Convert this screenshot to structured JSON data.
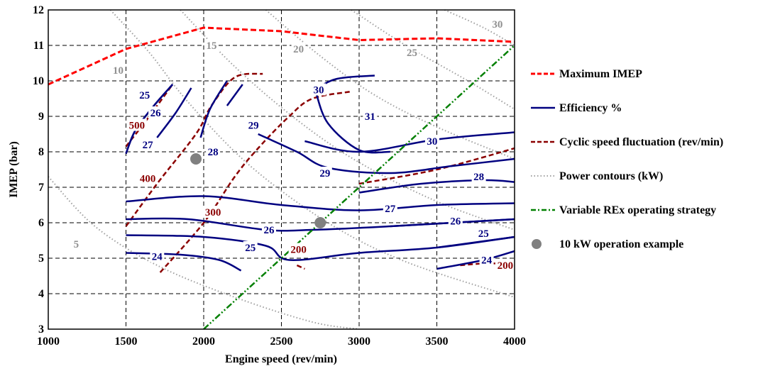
{
  "chart_data": {
    "type": "line",
    "xlabel": "Engine speed (rev/min)",
    "ylabel": "IMEP (bar)",
    "xlim": [
      1000,
      4000
    ],
    "ylim": [
      3,
      12
    ],
    "xticks": [
      1000,
      1500,
      2000,
      2500,
      3000,
      3500,
      4000
    ],
    "yticks": [
      3,
      4,
      5,
      6,
      7,
      8,
      9,
      10,
      11,
      12
    ],
    "grid": true,
    "legend_position": "right",
    "colors": {
      "max_imep": "#ff0000",
      "efficiency": "#000080",
      "cyclic": "#8b0000",
      "power": "#a0a0a0",
      "strategy": "#008000",
      "example": "#808080"
    },
    "legend": [
      {
        "key": "max_imep",
        "label": "Maximum IMEP"
      },
      {
        "key": "efficiency",
        "label": "Efficiency %"
      },
      {
        "key": "cyclic",
        "label": "Cyclic speed fluctuation (rev/min)"
      },
      {
        "key": "power",
        "label": "Power contours (kW)"
      },
      {
        "key": "strategy",
        "label": "Variable REx operating strategy"
      },
      {
        "key": "example",
        "label": "10 kW operation example"
      }
    ],
    "max_imep": [
      [
        1000,
        9.9
      ],
      [
        1500,
        10.9
      ],
      [
        2000,
        11.5
      ],
      [
        2500,
        11.4
      ],
      [
        3000,
        11.15
      ],
      [
        3500,
        11.2
      ],
      [
        4000,
        11.1
      ]
    ],
    "strategy": [
      [
        2000,
        3.0
      ],
      [
        4000,
        11.0
      ]
    ],
    "example_points": [
      [
        1950,
        7.8
      ],
      [
        2750,
        6.0
      ]
    ],
    "power_contours": [
      {
        "label": "5",
        "label_at": [
          1180,
          5.4
        ],
        "points": [
          [
            1000,
            7.3
          ],
          [
            1300,
            5.9
          ],
          [
            1700,
            4.8
          ],
          [
            2200,
            3.9
          ],
          [
            2700,
            3.2
          ],
          [
            3000,
            3.0
          ]
        ]
      },
      {
        "label": "10",
        "label_at": [
          1450,
          10.3
        ],
        "points": [
          [
            1400,
            12.0
          ],
          [
            1650,
            10.8
          ],
          [
            1900,
            9.4
          ],
          [
            2300,
            7.6
          ],
          [
            2800,
            6.0
          ],
          [
            3300,
            4.9
          ],
          [
            4000,
            3.9
          ]
        ]
      },
      {
        "label": "15",
        "label_at": [
          2050,
          11.0
        ],
        "points": [
          [
            1850,
            12.0
          ],
          [
            2200,
            10.4
          ],
          [
            2600,
            8.9
          ],
          [
            3000,
            7.7
          ],
          [
            3500,
            6.6
          ],
          [
            4000,
            5.8
          ]
        ]
      },
      {
        "label": "20",
        "label_at": [
          2610,
          10.9
        ],
        "points": [
          [
            2400,
            12.0
          ],
          [
            2750,
            10.7
          ],
          [
            3100,
            9.6
          ],
          [
            3500,
            8.7
          ],
          [
            4000,
            7.8
          ]
        ]
      },
      {
        "label": "25",
        "label_at": [
          3340,
          10.8
        ],
        "points": [
          [
            2950,
            12.0
          ],
          [
            3300,
            11.0
          ],
          [
            3700,
            10.0
          ],
          [
            4000,
            9.2
          ]
        ]
      },
      {
        "label": "30",
        "label_at": [
          3890,
          11.6
        ],
        "points": [
          [
            3550,
            12.0
          ],
          [
            3800,
            11.5
          ],
          [
            4000,
            11.0
          ]
        ]
      }
    ],
    "efficiency_contours": [
      {
        "label": "24",
        "label_at": [
          1700,
          5.05
        ],
        "points": [
          [
            1500,
            5.15
          ],
          [
            1850,
            5.1
          ],
          [
            2100,
            4.95
          ],
          [
            2240,
            4.65
          ]
        ]
      },
      {
        "label": "24",
        "label_at": [
          3820,
          4.95
        ],
        "points": [
          [
            3500,
            4.7
          ],
          [
            3800,
            4.95
          ],
          [
            4000,
            5.2
          ]
        ]
      },
      {
        "label": "25",
        "label_at": [
          1620,
          9.6
        ],
        "points": [
          [
            1500,
            7.95
          ],
          [
            1560,
            8.6
          ],
          [
            1680,
            9.3
          ],
          [
            1800,
            9.9
          ]
        ]
      },
      {
        "label": "25",
        "label_at": [
          2300,
          5.3
        ],
        "points": [
          [
            1500,
            5.65
          ],
          [
            2000,
            5.6
          ],
          [
            2400,
            5.35
          ],
          [
            2550,
            4.95
          ],
          [
            3000,
            5.15
          ],
          [
            3500,
            5.3
          ],
          [
            4000,
            5.6
          ]
        ]
      },
      {
        "label": "25",
        "label_at": [
          3800,
          5.7
        ],
        "points": [
          [
            3500,
            5.3
          ],
          [
            4000,
            5.6
          ]
        ]
      },
      {
        "label": "26",
        "label_at": [
          1690,
          9.1
        ],
        "points": [
          [
            1500,
            7.95
          ],
          [
            1560,
            8.6
          ],
          [
            1680,
            9.3
          ],
          [
            1800,
            9.9
          ]
        ]
      },
      {
        "label": "26",
        "label_at": [
          2420,
          5.8
        ],
        "points": [
          [
            1500,
            6.1
          ],
          [
            1900,
            6.1
          ],
          [
            2400,
            5.8
          ],
          [
            2700,
            5.8
          ],
          [
            3200,
            5.9
          ],
          [
            3600,
            6.0
          ],
          [
            4000,
            6.1
          ]
        ]
      },
      {
        "label": "26",
        "label_at": [
          3620,
          6.05
        ],
        "points": [
          [
            3200,
            5.9
          ],
          [
            4000,
            6.1
          ]
        ]
      },
      {
        "label": "27",
        "label_at": [
          1640,
          8.2
        ],
        "points": [
          [
            1700,
            8.4
          ],
          [
            1820,
            9.1
          ],
          [
            1920,
            9.8
          ]
        ]
      },
      {
        "label": "27",
        "label_at": [
          3200,
          6.4
        ],
        "points": [
          [
            1500,
            6.6
          ],
          [
            2000,
            6.75
          ],
          [
            2500,
            6.5
          ],
          [
            3000,
            6.35
          ],
          [
            3500,
            6.5
          ],
          [
            4000,
            6.55
          ]
        ]
      },
      {
        "label": "28",
        "label_at": [
          2060,
          8.0
        ],
        "points": [
          [
            1980,
            8.4
          ],
          [
            2040,
            9.2
          ],
          [
            2150,
            10.0
          ]
        ]
      },
      {
        "label": "28",
        "label_at": [
          3770,
          7.3
        ],
        "points": [
          [
            3000,
            6.85
          ],
          [
            3400,
            7.1
          ],
          [
            3800,
            7.2
          ],
          [
            4000,
            7.15
          ]
        ]
      },
      {
        "label": "29",
        "label_at": [
          2320,
          8.75
        ],
        "points": [
          [
            2150,
            9.3
          ],
          [
            2250,
            9.9
          ]
        ]
      },
      {
        "label": "29",
        "label_at": [
          2780,
          7.4
        ],
        "points": [
          [
            2350,
            8.5
          ],
          [
            2600,
            8.0
          ],
          [
            2800,
            7.55
          ],
          [
            3200,
            7.4
          ],
          [
            3600,
            7.6
          ],
          [
            4000,
            7.8
          ]
        ]
      },
      {
        "label": "30",
        "label_at": [
          2740,
          9.75
        ],
        "points": [
          [
            2700,
            9.7
          ],
          [
            2850,
            10.05
          ],
          [
            3100,
            10.15
          ]
        ]
      },
      {
        "label": "30",
        "label_at": [
          3470,
          8.3
        ],
        "points": [
          [
            2650,
            8.3
          ],
          [
            3000,
            8.0
          ],
          [
            3500,
            8.35
          ],
          [
            4000,
            8.55
          ]
        ]
      },
      {
        "label": "31",
        "label_at": [
          3070,
          9.0
        ],
        "points": [
          [
            2720,
            9.7
          ],
          [
            2800,
            8.8
          ],
          [
            3000,
            8.05
          ],
          [
            3200,
            8.0
          ]
        ]
      }
    ],
    "cyclic_contours": [
      {
        "label": "500",
        "label_at": [
          1570,
          8.75
        ],
        "points": [
          [
            1500,
            8.15
          ],
          [
            1650,
            9.0
          ],
          [
            1800,
            9.9
          ]
        ]
      },
      {
        "label": "400",
        "label_at": [
          1640,
          7.25
        ],
        "points": [
          [
            1500,
            5.9
          ],
          [
            1700,
            7.1
          ],
          [
            1950,
            8.5
          ],
          [
            2050,
            9.3
          ],
          [
            2200,
            10.1
          ],
          [
            2380,
            10.2
          ]
        ]
      },
      {
        "label": "300",
        "label_at": [
          2060,
          6.3
        ],
        "points": [
          [
            1720,
            4.6
          ],
          [
            2000,
            6.0
          ],
          [
            2200,
            7.3
          ],
          [
            2350,
            8.1
          ],
          [
            2550,
            9.0
          ],
          [
            2700,
            9.5
          ],
          [
            2950,
            9.7
          ]
        ]
      },
      {
        "label": "200",
        "label_at": [
          2610,
          5.25
        ],
        "points": [
          [
            2600,
            4.8
          ],
          [
            2650,
            4.7
          ]
        ]
      },
      {
        "label": "200",
        "label_at": [
          3940,
          4.8
        ],
        "points": [
          [
            3650,
            4.8
          ],
          [
            3800,
            4.85
          ],
          [
            4000,
            4.85
          ]
        ]
      },
      {
        "label": "",
        "label_at": [
          3500,
          7.5
        ],
        "points": [
          [
            3000,
            7.1
          ],
          [
            3500,
            7.5
          ],
          [
            4000,
            8.1
          ]
        ]
      }
    ]
  }
}
